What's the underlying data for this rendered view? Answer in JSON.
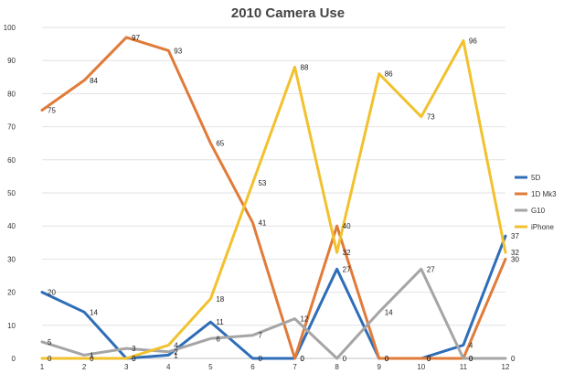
{
  "chart_data": {
    "type": "line",
    "title": "2010 Camera Use",
    "x": [
      1,
      2,
      3,
      4,
      5,
      6,
      7,
      8,
      9,
      10,
      11,
      12
    ],
    "ylim": [
      0,
      100
    ],
    "yticks": [
      0,
      10,
      20,
      30,
      40,
      50,
      60,
      70,
      80,
      90,
      100
    ],
    "grid": true,
    "legend_position": "right",
    "series": [
      {
        "name": "5D",
        "color": "#2e6db8",
        "values": [
          20,
          14,
          0,
          1,
          11,
          0,
          0,
          27,
          0,
          0,
          4,
          37
        ]
      },
      {
        "name": "1D Mk3",
        "color": "#e07b39",
        "values": [
          75,
          84,
          97,
          93,
          65,
          41,
          0,
          40,
          0,
          0,
          0,
          30
        ]
      },
      {
        "name": "G10",
        "color": "#a5a5a5",
        "values": [
          5,
          1,
          3,
          2,
          6,
          7,
          12,
          0,
          14,
          27,
          0,
          0
        ]
      },
      {
        "name": "iPhone",
        "color": "#f2c12e",
        "values": [
          0,
          0,
          0,
          4,
          18,
          53,
          88,
          32,
          86,
          73,
          96,
          32
        ]
      }
    ]
  }
}
